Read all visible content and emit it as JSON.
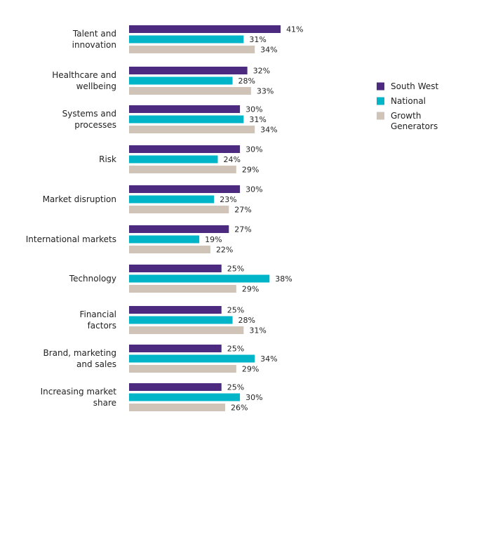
{
  "chart_data": {
    "type": "bar",
    "orientation": "horizontal",
    "categories": [
      "Talent and\ninnovation",
      "Healthcare and\nwellbeing",
      "Systems and\nprocesses",
      "Risk",
      "Market disruption",
      "International markets",
      "Technology",
      "Financial\nfactors",
      "Brand, marketing\nand sales",
      "Increasing market\nshare"
    ],
    "series": [
      {
        "name": "South West",
        "color": "#4b2a7f",
        "values": [
          41,
          32,
          30,
          30,
          30,
          27,
          25,
          25,
          25,
          25
        ],
        "value_labels": [
          "41%",
          "32%",
          "30%",
          "30%",
          "30%",
          "27%",
          "25%",
          "25%",
          "25%",
          "25%"
        ]
      },
      {
        "name": "National",
        "color": "#00b5c8",
        "values": [
          31,
          28,
          31,
          24,
          23,
          19,
          38,
          28,
          34,
          30
        ],
        "value_labels": [
          "31%",
          "28%",
          "31%",
          "24%",
          "23%",
          "19%",
          "38%",
          "28%",
          "34%",
          "30%"
        ]
      },
      {
        "name": "Growth\nGenerators",
        "color": "#d0c4b8",
        "values": [
          34,
          33,
          34,
          29,
          27,
          22,
          29,
          31,
          29,
          26
        ],
        "value_labels": [
          "34%",
          "33%",
          "34%",
          "29%",
          "27%",
          "22%",
          "29%",
          "31%",
          "29%",
          "26%"
        ]
      }
    ],
    "legend": "right"
  }
}
